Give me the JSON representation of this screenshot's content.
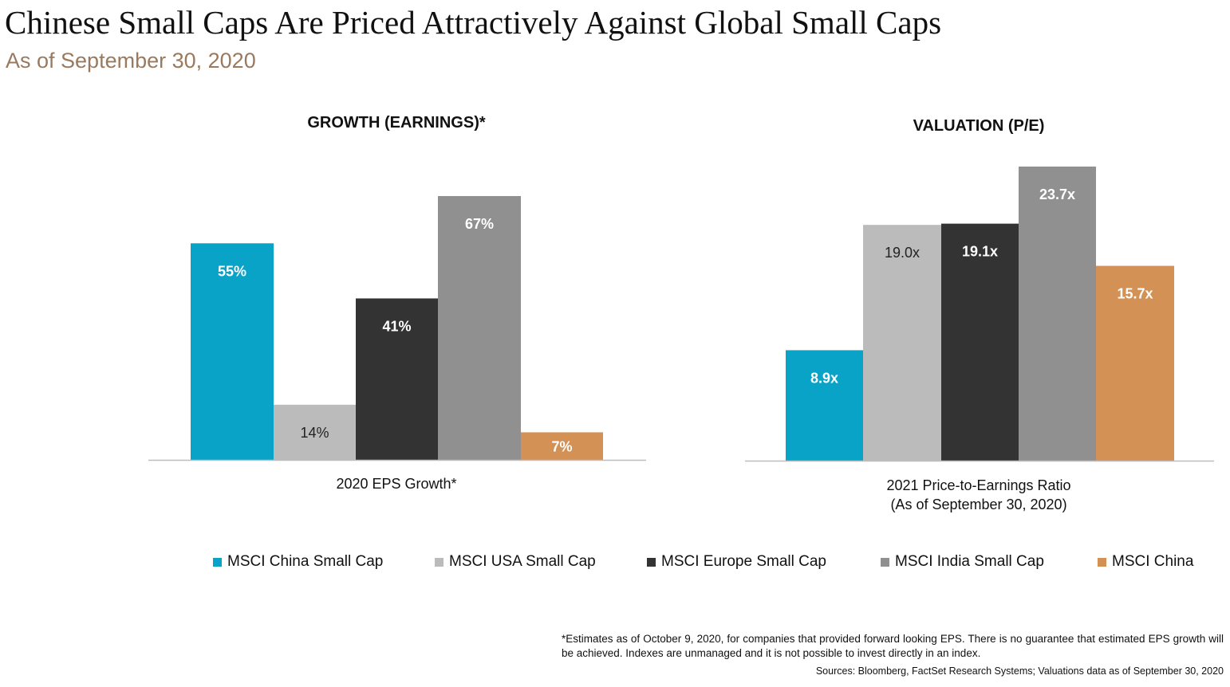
{
  "title": "Chinese Small Caps Are Priced Attractively Against Global Small Caps",
  "subtitle": "As of September 30, 2020",
  "legend": [
    {
      "label": "MSCI China Small Cap",
      "color": "#0aa3c8"
    },
    {
      "label": "MSCI USA Small Cap",
      "color": "#bbbbbb"
    },
    {
      "label": "MSCI Europe Small Cap",
      "color": "#333333"
    },
    {
      "label": "MSCI India Small Cap",
      "color": "#909090"
    },
    {
      "label": "MSCI China",
      "color": "#d49155"
    }
  ],
  "chart_data": [
    {
      "type": "bar",
      "title": "GROWTH (EARNINGS)*",
      "xlabel": [
        "2020 EPS Growth*"
      ],
      "categories": [
        "MSCI China Small Cap",
        "MSCI USA Small Cap",
        "MSCI Europe Small Cap",
        "MSCI India Small Cap",
        "MSCI China"
      ],
      "values": [
        55,
        14,
        41,
        67,
        7
      ],
      "data_labels": [
        "55%",
        "14%",
        "41%",
        "67%",
        "7%"
      ],
      "colors": [
        "#0aa3c8",
        "#bbbbbb",
        "#333333",
        "#909090",
        "#d49155"
      ],
      "label_colors": [
        "#ffffff",
        "#222222",
        "#ffffff",
        "#ffffff",
        "#ffffff"
      ],
      "ylim": [
        0,
        67
      ],
      "grid": false,
      "legend": "bottom"
    },
    {
      "type": "bar",
      "title": "VALUATION (P/E)",
      "xlabel": [
        "2021 Price-to-Earnings Ratio",
        "(As of September 30, 2020)"
      ],
      "categories": [
        "MSCI China Small Cap",
        "MSCI USA Small Cap",
        "MSCI Europe Small Cap",
        "MSCI India Small Cap",
        "MSCI China"
      ],
      "values": [
        8.9,
        19.0,
        19.1,
        23.7,
        15.7
      ],
      "data_labels": [
        "8.9x",
        "19.0x",
        "19.1x",
        "23.7x",
        "15.7x"
      ],
      "colors": [
        "#0aa3c8",
        "#bbbbbb",
        "#333333",
        "#909090",
        "#d49155"
      ],
      "label_colors": [
        "#ffffff",
        "#222222",
        "#ffffff",
        "#ffffff",
        "#ffffff"
      ],
      "ylim": [
        0,
        23.7
      ],
      "grid": false,
      "legend": "bottom"
    }
  ],
  "footnote": "*Estimates as of October 9, 2020, for companies that provided forward looking EPS. There is no guarantee that estimated EPS growth will be achieved. Indexes are unmanaged and it is not possible to invest directly in an index.",
  "sources": "Sources: Bloomberg, FactSet Research Systems; Valuations data as of September 30, 2020"
}
